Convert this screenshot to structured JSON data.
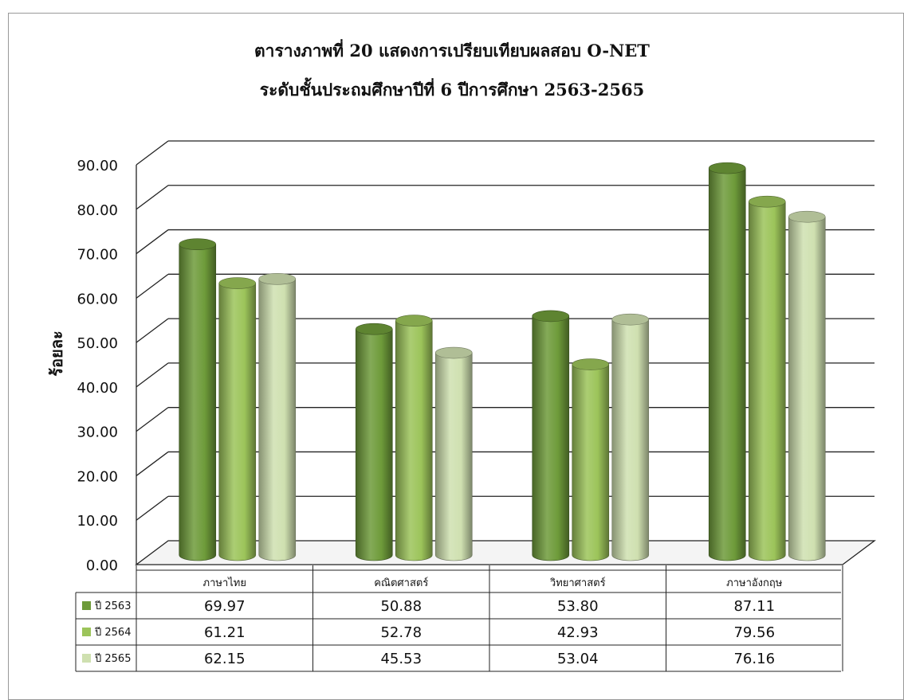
{
  "chart_data": {
    "type": "bar",
    "title": "ตารางภาพที่ 20 แสดงการเปรียบเทียบผลสอบ O-NET",
    "subtitle": "ระดับชั้นประถมศึกษาปีที่ 6   ปีการศึกษา 2563-2565",
    "ylabel": "ร้อยละ",
    "xlabel": "",
    "ylim": [
      0,
      90
    ],
    "ytick_labels": [
      "0.00",
      "10.00",
      "20.00",
      "30.00",
      "40.00",
      "50.00",
      "60.00",
      "70.00",
      "80.00",
      "90.00"
    ],
    "categories": [
      "ภาษาไทย",
      "คณิตศาสตร์",
      "วิทยาศาสตร์",
      "ภาษาอังกฤษ"
    ],
    "series": [
      {
        "name": "ปี 2563",
        "color": "#6e9b3a",
        "values": [
          69.97,
          50.88,
          53.8,
          87.11
        ],
        "labels": [
          "69.97",
          "50.88",
          "53.80",
          "87.11"
        ]
      },
      {
        "name": "ปี 2564",
        "color": "#9cc45a",
        "values": [
          61.21,
          52.78,
          42.93,
          79.56
        ],
        "labels": [
          "61.21",
          "52.78",
          "42.93",
          "79.56"
        ]
      },
      {
        "name": "ปี 2565",
        "color": "#cfe0b0",
        "values": [
          62.15,
          45.53,
          53.04,
          76.16
        ],
        "labels": [
          "62.15",
          "45.53",
          "53.04",
          "76.16"
        ]
      }
    ],
    "grid": true,
    "legend": "data-table",
    "style": "3d-cylinder"
  }
}
